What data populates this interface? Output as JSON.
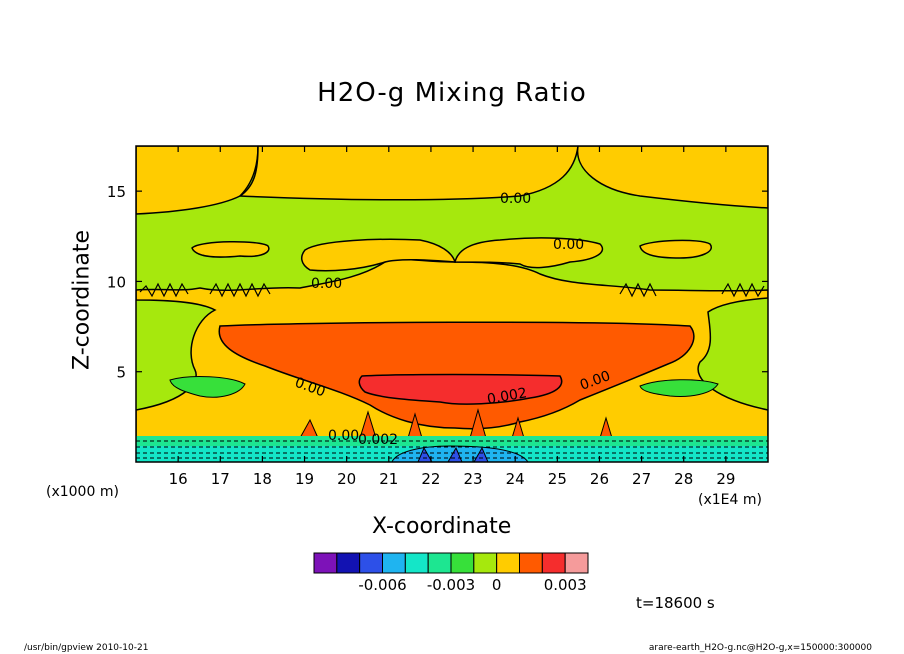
{
  "chart_data": {
    "type": "heatmap",
    "title": "H2O-g Mixing Ratio",
    "xlabel": "X-coordinate",
    "ylabel": "Z-coordinate",
    "x_unit_note": "(x1000 m)",
    "x_scale_note": "(x1E4 m)",
    "x_ticks": [
      16,
      17,
      18,
      19,
      20,
      21,
      22,
      23,
      24,
      25,
      26,
      27,
      28,
      29
    ],
    "y_ticks": [
      5,
      10,
      15
    ],
    "xlim": [
      15,
      30
    ],
    "ylim": [
      0,
      17.5
    ],
    "colorbar": {
      "colors": [
        "#7d12b8",
        "#1212b2",
        "#2d50e8",
        "#1fb4f0",
        "#14e6c8",
        "#1de691",
        "#37e03a",
        "#a6e80d",
        "#ffcc00",
        "#ff5a00",
        "#f52d2d",
        "#f59b9b"
      ],
      "tick_labels": [
        "-0.006",
        "-0.003",
        "0",
        "0.003"
      ]
    },
    "contour_labels": [
      "0.00",
      "0.00",
      "0.00",
      "0.00",
      "0.00",
      "0.002",
      "0.002",
      "0.00"
    ],
    "time_label": "t=18600 s"
  },
  "footer": {
    "left": "/usr/bin/gpview   2010-10-21",
    "right": "arare-earth_H2O-g.nc@H2O-g,x=150000:300000"
  }
}
